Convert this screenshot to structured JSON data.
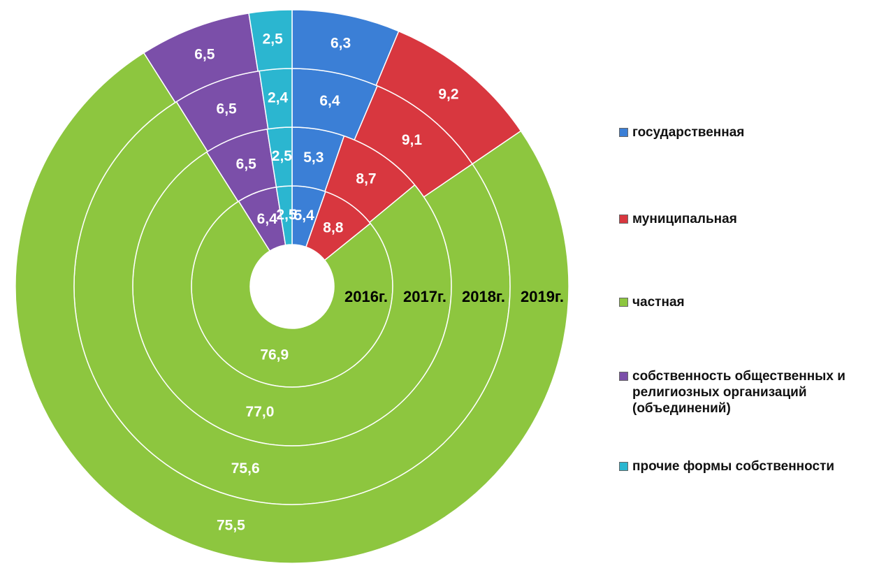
{
  "chart_data": {
    "type": "doughnut",
    "categories": [
      "2016г.",
      "2017г.",
      "2018г.",
      "2019г."
    ],
    "series": [
      {
        "name": "государственная",
        "color": "#3b7fd6",
        "values": [
          5.4,
          5.3,
          6.4,
          6.3
        ],
        "value_labels": [
          "5,4",
          "5,3",
          "6,4",
          "6,3"
        ]
      },
      {
        "name": "муниципальная",
        "color": "#d8373f",
        "values": [
          8.8,
          8.7,
          9.1,
          9.2
        ],
        "value_labels": [
          "8,8",
          "8,7",
          "9,1",
          "9,2"
        ]
      },
      {
        "name": "частная",
        "color": "#8dc63f",
        "values": [
          76.9,
          77.0,
          75.6,
          75.5
        ],
        "value_labels": [
          "76,9",
          "77,0",
          "75,6",
          "75,5"
        ]
      },
      {
        "name": "собственность общественных и религиозных организаций (объединений)",
        "color": "#7b4fa9",
        "values": [
          6.4,
          6.5,
          6.5,
          6.5
        ],
        "value_labels": [
          "6,4",
          "6,5",
          "6,5",
          "6,5"
        ]
      },
      {
        "name": "прочие формы собственности",
        "color": "#2bb6d0",
        "values": [
          2.5,
          2.5,
          2.4,
          2.5
        ],
        "value_labels": [
          "2,5",
          "2,5",
          "2,4",
          "2,5"
        ]
      }
    ]
  }
}
